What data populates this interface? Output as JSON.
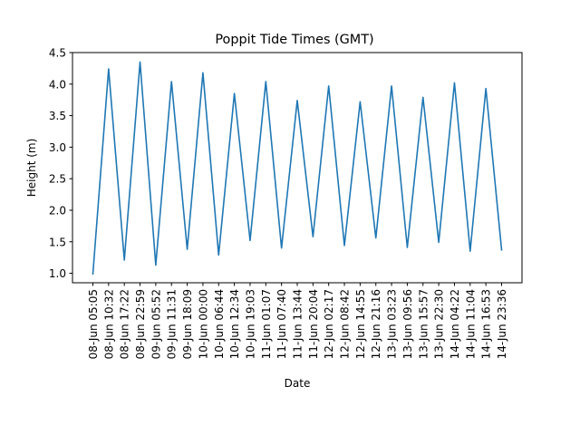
{
  "chart_data": {
    "type": "line",
    "title": "Poppit Tide Times (GMT)",
    "xlabel": "Date",
    "ylabel": "Height (m)",
    "ylim": [
      0.85,
      4.5
    ],
    "yticks": [
      1.0,
      1.5,
      2.0,
      2.5,
      3.0,
      3.5,
      4.0,
      4.5
    ],
    "ytick_labels": [
      "1.0",
      "1.5",
      "2.0",
      "2.5",
      "3.0",
      "3.5",
      "4.0",
      "4.5"
    ],
    "grid": false,
    "legend": "none",
    "line_color": "#1f77b4",
    "x": [
      "08-Jun 05:05",
      "08-Jun 10:32",
      "08-Jun 17:22",
      "08-Jun 22:59",
      "09-Jun 05:52",
      "09-Jun 11:31",
      "09-Jun 18:09",
      "10-Jun 00:00",
      "10-Jun 06:44",
      "10-Jun 12:34",
      "10-Jun 19:03",
      "11-Jun 01:07",
      "11-Jun 07:40",
      "11-Jun 13:44",
      "11-Jun 20:04",
      "12-Jun 02:17",
      "12-Jun 08:42",
      "12-Jun 14:55",
      "12-Jun 21:16",
      "13-Jun 03:23",
      "13-Jun 09:56",
      "13-Jun 15:57",
      "13-Jun 22:30",
      "14-Jun 04:22",
      "14-Jun 11:04",
      "14-Jun 16:53",
      "14-Jun 23:36"
    ],
    "series": [
      {
        "values": [
          0.99,
          4.24,
          1.21,
          4.35,
          1.13,
          4.04,
          1.38,
          4.18,
          1.29,
          3.85,
          1.52,
          4.04,
          1.4,
          3.74,
          1.58,
          3.97,
          1.44,
          3.72,
          1.56,
          3.97,
          1.41,
          3.79,
          1.49,
          4.02,
          1.35,
          3.93,
          1.37
        ]
      }
    ]
  }
}
